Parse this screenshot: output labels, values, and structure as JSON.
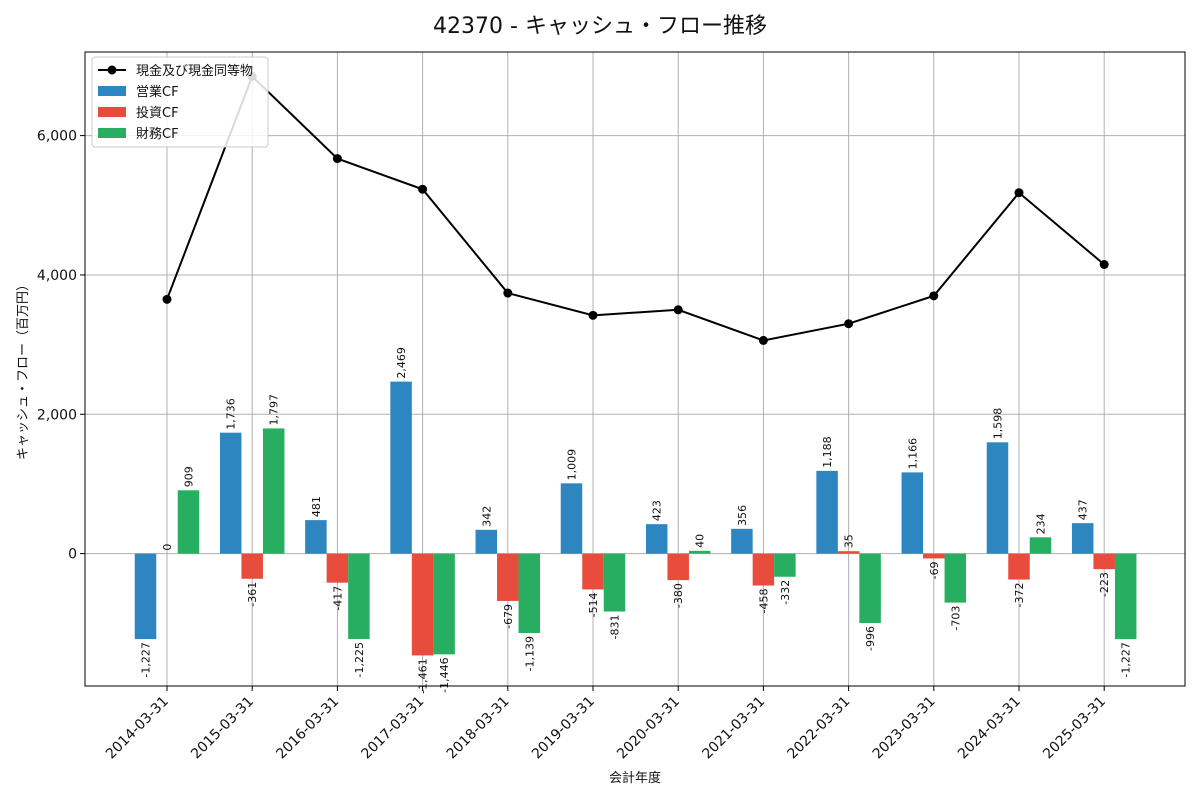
{
  "chart_data": {
    "type": "bar",
    "title": "42370 - キャッシュ・フロー推移",
    "xlabel": "会計年度",
    "ylabel": "キャッシュ・フロー（百万円）",
    "categories": [
      "2014-03-31",
      "2015-03-31",
      "2016-03-31",
      "2017-03-31",
      "2018-03-31",
      "2019-03-31",
      "2020-03-31",
      "2021-03-31",
      "2022-03-31",
      "2023-03-31",
      "2024-03-31",
      "2025-03-31"
    ],
    "series": [
      {
        "name": "営業CF",
        "kind": "bar",
        "color": "#2e86c1",
        "values": [
          -1227,
          1736,
          481,
          2469,
          342,
          1009,
          423,
          356,
          1188,
          1166,
          1598,
          437
        ],
        "labels": [
          "-1,227",
          "1,736",
          "481",
          "2,469",
          "342",
          "1,009",
          "423",
          "356",
          "1,188",
          "1,166",
          "1,598",
          "437"
        ]
      },
      {
        "name": "投資CF",
        "kind": "bar",
        "color": "#e74c3c",
        "values": [
          0,
          -361,
          -417,
          -1461,
          -679,
          -514,
          -380,
          -458,
          35,
          -69,
          -372,
          -223
        ],
        "labels": [
          "0",
          "-361",
          "-417",
          "-1,461",
          "-679",
          "-514",
          "-380",
          "-458",
          "35",
          "-69",
          "-372",
          "-223"
        ]
      },
      {
        "name": "財務CF",
        "kind": "bar",
        "color": "#27ae60",
        "values": [
          909,
          1797,
          -1225,
          -1446,
          -1139,
          -831,
          40,
          -332,
          -996,
          -703,
          234,
          -1227
        ],
        "labels": [
          "909",
          "1,797",
          "-1,225",
          "-1,446",
          "-1,139",
          "-831",
          "40",
          "-332",
          "-996",
          "-703",
          "234",
          "-1,227"
        ]
      },
      {
        "name": "現金及び現金同等物",
        "kind": "line",
        "color": "#000000",
        "values": [
          3650,
          6850,
          5670,
          5230,
          3740,
          3420,
          3500,
          3060,
          3300,
          3700,
          5180,
          4150
        ]
      }
    ],
    "legend_order": [
      "現金及び現金同等物",
      "営業CF",
      "投資CF",
      "財務CF"
    ],
    "legend_position": "top-left",
    "ylim": [
      -1900,
      7200
    ],
    "yticks": [
      0,
      2000,
      4000,
      6000
    ],
    "ytick_labels": [
      "0",
      "2,000",
      "4,000",
      "6,000"
    ],
    "grid": true
  }
}
